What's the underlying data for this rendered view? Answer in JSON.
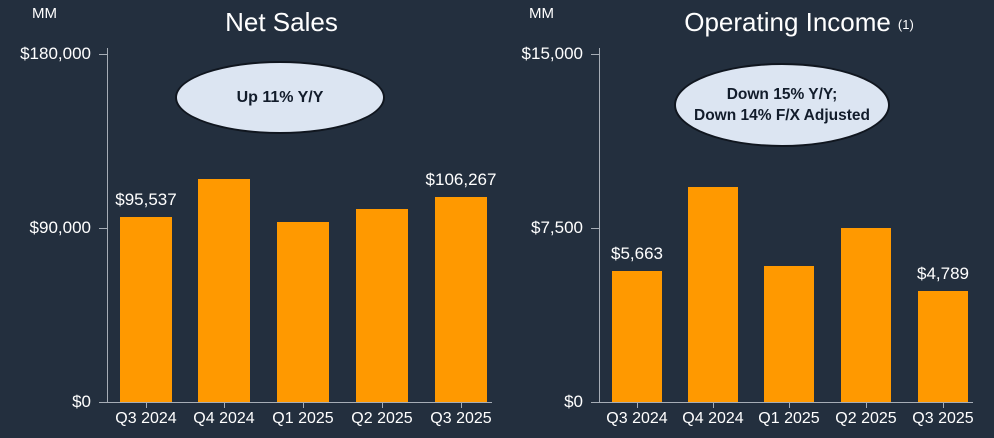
{
  "theme": {
    "background": "#232F3E",
    "text_color": "#FFFFFF",
    "bar_color": "#FF9900",
    "axis_color": "#A6ADB6",
    "callout_fill": "#DCE5F2",
    "callout_border": "#10161F",
    "callout_text": "#121C2B"
  },
  "chart_data": [
    {
      "type": "bar",
      "title": "Net Sales",
      "unit_label": "MM",
      "callout": {
        "lines": [
          "Up 11% Y/Y"
        ]
      },
      "categories": [
        "Q3 2024",
        "Q4 2024",
        "Q1 2025",
        "Q2 2025",
        "Q3 2025"
      ],
      "values": [
        95537,
        115586,
        92887,
        100068,
        106267
      ],
      "values_note": "only Q3 2024 and Q3 2025 are labeled on the chart; middle bars estimated from axis",
      "data_labels": [
        {
          "index": 0,
          "text": "$95,537"
        },
        {
          "index": 4,
          "text": "$106,267"
        }
      ],
      "y_axis": {
        "min": 0,
        "max": 180000,
        "ticks": [
          {
            "value": 0,
            "label": "$0"
          },
          {
            "value": 90000,
            "label": "$90,000"
          },
          {
            "value": 180000,
            "label": "$180,000"
          }
        ]
      },
      "grid": "off",
      "legend": "none"
    },
    {
      "type": "bar",
      "title": "Operating Income",
      "title_footnote": "(1)",
      "unit_label": "MM",
      "callout": {
        "lines": [
          "Down 15% Y/Y;",
          "Down 14% F/X Adjusted"
        ]
      },
      "categories": [
        "Q3 2024",
        "Q4 2024",
        "Q1 2025",
        "Q2 2025",
        "Q3 2025"
      ],
      "values": [
        5663,
        9263,
        5841,
        7516,
        4789
      ],
      "values_note": "only Q3 2024 and Q3 2025 are labeled on the chart; middle bars estimated from axis",
      "data_labels": [
        {
          "index": 0,
          "text": "$5,663"
        },
        {
          "index": 4,
          "text": "$4,789"
        }
      ],
      "y_axis": {
        "min": 0,
        "max": 15000,
        "ticks": [
          {
            "value": 0,
            "label": "$0"
          },
          {
            "value": 7500,
            "label": "$7,500"
          },
          {
            "value": 15000,
            "label": "$15,000"
          }
        ]
      },
      "grid": "off",
      "legend": "none"
    }
  ]
}
